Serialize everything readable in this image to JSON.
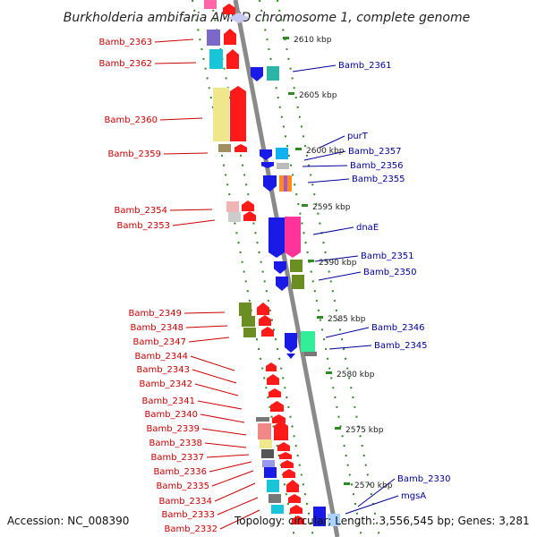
{
  "title": "Burkholderia ambifaria AMMD chromosome 1, complete genome",
  "accession": "Accession: NC_008390",
  "topology": "Topology: circular; Length: 3,556,545 bp; Genes: 3,281",
  "colors": {
    "left_label": "#cc0000",
    "right_label": "#00009c",
    "backbone": "#8a8a8a",
    "tick": "#2e8b22",
    "red": "#ff1a1a",
    "blue": "#1a1ae6",
    "cyan": "#19c6d9",
    "olive": "#6b8e23",
    "yellow": "#f0e68c",
    "pink": "#f0b4b4",
    "magenta": "#ff3399",
    "purple": "#7b68c8",
    "teal": "#2ab5a5",
    "gray": "#9a9a9a",
    "green": "#33ee99"
  },
  "kbp_ticks": [
    "2610 kbp",
    "2605 kbp",
    "2600 kbp",
    "2595 kbp",
    "2590 kbp",
    "2585 kbp",
    "2580 kbp",
    "2575 kbp",
    "2570 kbp"
  ],
  "left_labels": [
    "Bamb_2363",
    "Bamb_2362",
    "Bamb_2360",
    "Bamb_2359",
    "Bamb_2354",
    "Bamb_2353",
    "Bamb_2349",
    "Bamb_2348",
    "Bamb_2347",
    "Bamb_2344",
    "Bamb_2343",
    "Bamb_2342",
    "Bamb_2341",
    "Bamb_2340",
    "Bamb_2339",
    "Bamb_2338",
    "Bamb_2337",
    "Bamb_2336",
    "Bamb_2335",
    "Bamb_2334",
    "Bamb_2333",
    "Bamb_2332"
  ],
  "right_labels": [
    "Bamb_2361",
    "purT",
    "Bamb_2357",
    "Bamb_2356",
    "Bamb_2355",
    "dnaE",
    "Bamb_2351",
    "Bamb_2350",
    "Bamb_2346",
    "Bamb_2345",
    "Bamb_2330",
    "mgsA"
  ]
}
